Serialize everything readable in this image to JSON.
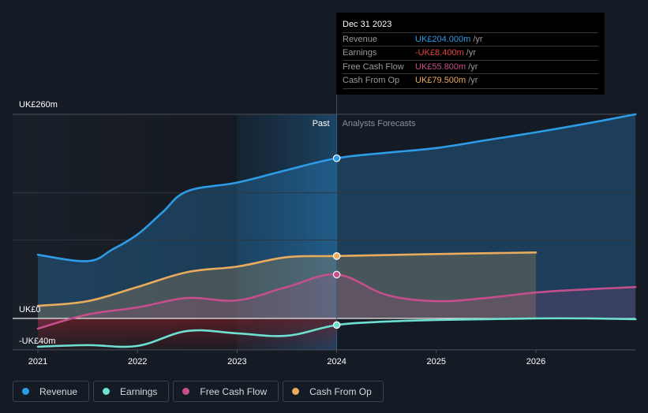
{
  "chart_data": {
    "type": "line",
    "title": "",
    "currency_prefix": "UK£",
    "xlabel": "",
    "ylabel": "",
    "ylim": [
      -40,
      260
    ],
    "xlim": [
      2020.8,
      2027
    ],
    "x_ticks": [
      "2021",
      "2022",
      "2023",
      "2024",
      "2025",
      "2026"
    ],
    "y_tick_labels": [
      {
        "value": 260,
        "label": "UK£260m"
      },
      {
        "value": 0,
        "label": "UK£0"
      },
      {
        "value": -40,
        "label": "-UK£40m"
      }
    ],
    "gridlines": [
      260,
      160,
      100,
      0,
      -40
    ],
    "past_label": "Past",
    "forecast_label": "Analysts Forecasts",
    "divider_x": 2024,
    "highlight_band": [
      2023,
      2024
    ],
    "series": [
      {
        "name": "Revenue",
        "color": "#2e9be6",
        "x": [
          2021,
          2021.5,
          2021.75,
          2022,
          2022.25,
          2022.5,
          2023,
          2023.5,
          2024,
          2024.5,
          2025,
          2025.5,
          2026,
          2026.5,
          2027
        ],
        "values": [
          81,
          73,
          88,
          107,
          135,
          162,
          173,
          189,
          204,
          211,
          217,
          227,
          237,
          248,
          260
        ]
      },
      {
        "name": "Earnings",
        "color": "#6ee0d2",
        "x": [
          2021,
          2021.5,
          2022,
          2022.5,
          2023,
          2023.5,
          2024,
          2024.5,
          2025,
          2025.5,
          2026,
          2026.5,
          2027
        ],
        "values": [
          -36,
          -34,
          -35,
          -16,
          -19,
          -22,
          -8.4,
          -4,
          -2,
          -1,
          0,
          0,
          -1
        ]
      },
      {
        "name": "Free Cash Flow",
        "color": "#c44f8c",
        "x": [
          2021,
          2021.5,
          2022,
          2022.5,
          2023,
          2023.5,
          2024,
          2024.5,
          2025,
          2025.5,
          2026,
          2026.5,
          2027
        ],
        "values": [
          -13,
          5,
          14,
          26,
          23,
          40,
          55.8,
          30,
          22,
          26,
          33,
          37,
          40
        ]
      },
      {
        "name": "Cash From Op",
        "color": "#e8ac5c",
        "x": [
          2021,
          2021.5,
          2022,
          2022.5,
          2023,
          2023.5,
          2024,
          2025,
          2026
        ],
        "values": [
          16,
          22,
          40,
          59,
          66,
          78,
          79.5,
          82,
          84
        ]
      }
    ]
  },
  "tooltip": {
    "date": "Dec 31 2023",
    "unit": "/yr",
    "rows": [
      {
        "label": "Revenue",
        "value": "UK£204.000m",
        "color": "#2e9be6"
      },
      {
        "label": "Earnings",
        "value": "-UK£8.400m",
        "color": "#e8423f"
      },
      {
        "label": "Free Cash Flow",
        "value": "UK£55.800m",
        "color": "#c44f8c"
      },
      {
        "label": "Cash From Op",
        "value": "UK£79.500m",
        "color": "#e8ac5c"
      }
    ]
  },
  "legend": [
    {
      "label": "Revenue",
      "color": "#2e9be6"
    },
    {
      "label": "Earnings",
      "color": "#6ee0d2"
    },
    {
      "label": "Free Cash Flow",
      "color": "#c44f8c"
    },
    {
      "label": "Cash From Op",
      "color": "#e8ac5c"
    }
  ]
}
